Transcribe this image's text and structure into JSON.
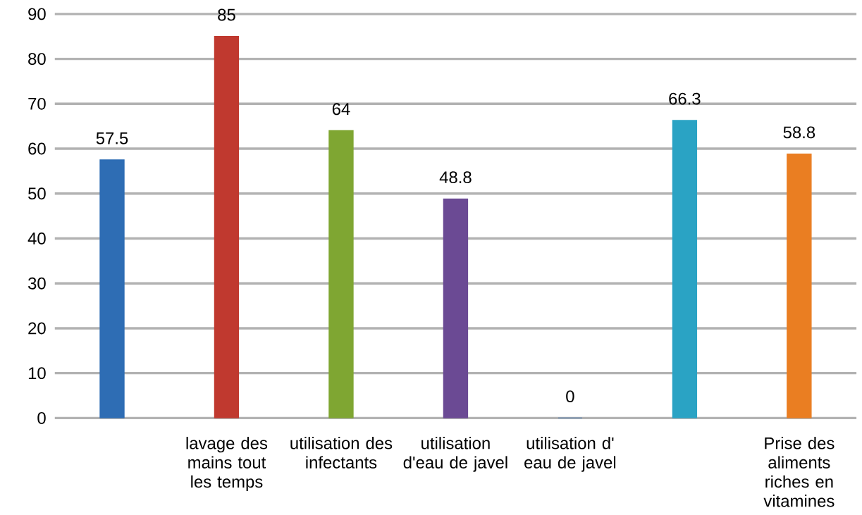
{
  "chart_data": {
    "type": "bar",
    "categories": [
      null,
      "lavage des mains tout les temps",
      "utilisation des infectants",
      "utilisation d'eau de javel",
      "utilisation d' eau de javel",
      null,
      "Prise des aliments riches en vitamines"
    ],
    "values": [
      57.5,
      85,
      64,
      48.8,
      0,
      66.3,
      58.8
    ],
    "colors": [
      "#2e6db4",
      "#c0392f",
      "#7fa632",
      "#6b4a94",
      "#2e6db4",
      "#2aa3c4",
      "#ea7e22"
    ],
    "ylim": [
      0,
      90
    ],
    "yticks": [
      0,
      10,
      20,
      30,
      40,
      50,
      60,
      70,
      80,
      90
    ],
    "grid": "y",
    "data_labels": true
  }
}
